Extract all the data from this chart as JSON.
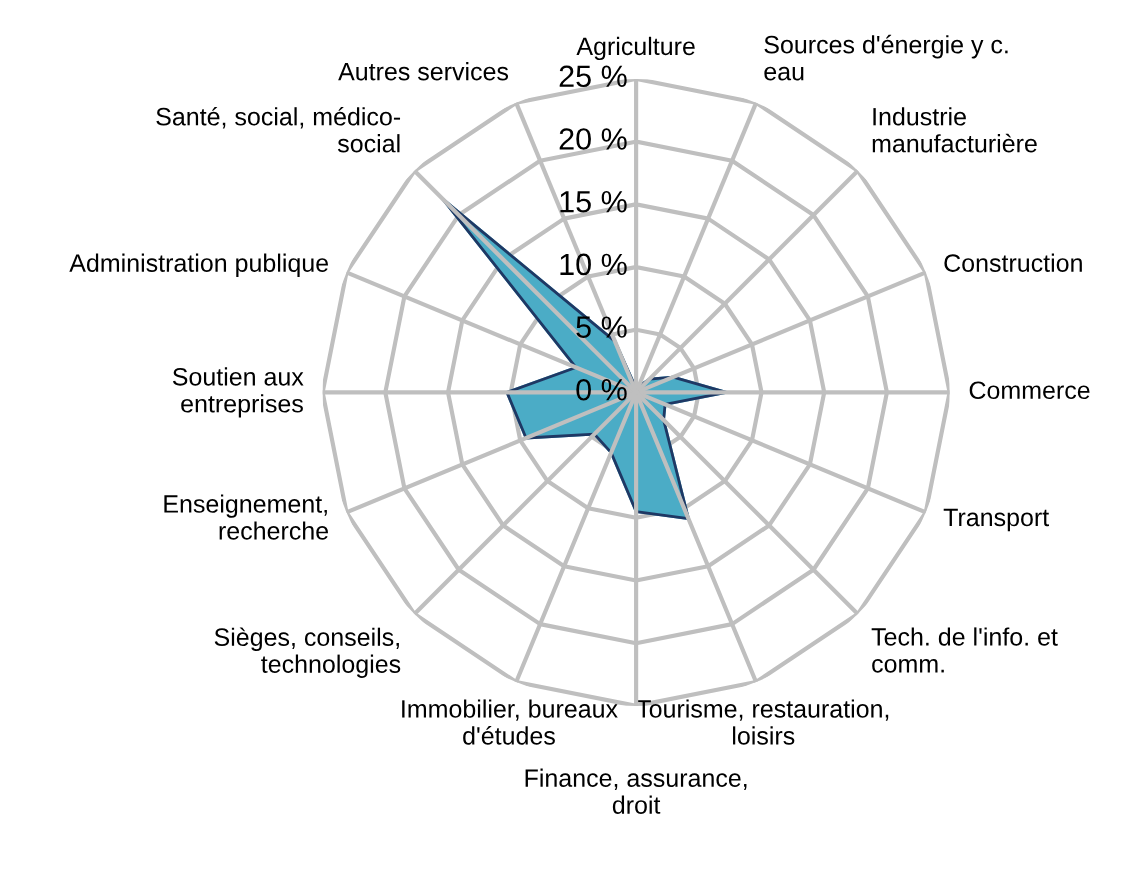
{
  "chart_data": {
    "type": "radar",
    "categories": [
      "Agriculture",
      "Sources d'énergie y c.\neau",
      "Industrie\nmanufacturière",
      "Construction",
      "Commerce",
      "Transport",
      "Tech. de l'info. et\ncomm.",
      "Tourisme, restauration,\nloisirs",
      "Finance, assurance,\ndroit",
      "Immobilier, bureaux\nd'études",
      "Sièges, conseils,\ntechnologies",
      "Enseignement,\nrecherche",
      "Soutien aux\nentreprises",
      "Administration publique",
      "Santé, social, médico-\nsocial",
      "Autres services"
    ],
    "series": [
      {
        "color": "#4bacc6",
        "values": [
          0.3,
          0.5,
          1.5,
          3.2,
          7.2,
          2.5,
          3.1,
          10.9,
          9.5,
          5.2,
          4.7,
          9.5,
          10.3,
          5.2,
          21.8,
          4.4
        ]
      }
    ],
    "ylim": [
      0,
      25
    ],
    "yticks": [
      {
        "value": 0,
        "label": "0 %"
      },
      {
        "value": 5,
        "label": "5 %"
      },
      {
        "value": 10,
        "label": "10 %"
      },
      {
        "value": 15,
        "label": "15 %"
      },
      {
        "value": 20,
        "label": "20 %"
      },
      {
        "value": 25,
        "label": "25 %"
      }
    ],
    "grid": true
  }
}
